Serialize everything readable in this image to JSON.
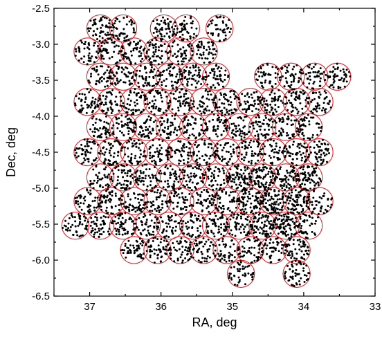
{
  "chart_data": {
    "type": "scatter",
    "xlabel": "RA, deg",
    "ylabel": "Dec, deg",
    "xlim": [
      37.5,
      33.0
    ],
    "ylim": [
      -6.5,
      -2.5
    ],
    "x_reversed": true,
    "grid": false,
    "x_ticks": [
      37,
      36,
      35,
      34,
      33
    ],
    "x_tick_labels": [
      "37",
      "36",
      "35",
      "34",
      "33"
    ],
    "y_ticks": [
      -2.5,
      -3.0,
      -3.5,
      -4.0,
      -4.5,
      -5.0,
      -5.5,
      -6.0,
      -6.5
    ],
    "y_tick_labels": [
      "-2.5",
      "-3.0",
      "-3.5",
      "-4.0",
      "-4.5",
      "-5.0",
      "-5.5",
      "-6.0",
      "-6.5"
    ],
    "field_radius_deg": 0.19,
    "colors": {
      "circle": "#e21f26",
      "point": "#000000",
      "axis": "#000000"
    },
    "series": [
      {
        "kind": "field-circles",
        "centers": [
          [
            36.85,
            -2.78
          ],
          [
            36.53,
            -2.78
          ],
          [
            35.96,
            -2.78
          ],
          [
            35.65,
            -2.78
          ],
          [
            35.18,
            -2.78
          ],
          [
            37.03,
            -3.1
          ],
          [
            36.7,
            -3.1
          ],
          [
            36.38,
            -3.1
          ],
          [
            36.05,
            -3.1
          ],
          [
            35.73,
            -3.1
          ],
          [
            35.4,
            -3.1
          ],
          [
            36.85,
            -3.45
          ],
          [
            36.53,
            -3.45
          ],
          [
            36.2,
            -3.45
          ],
          [
            35.88,
            -3.45
          ],
          [
            35.55,
            -3.45
          ],
          [
            35.23,
            -3.45
          ],
          [
            34.5,
            -3.45
          ],
          [
            34.18,
            -3.45
          ],
          [
            33.85,
            -3.45
          ],
          [
            33.53,
            -3.45
          ],
          [
            37.03,
            -3.8
          ],
          [
            36.7,
            -3.8
          ],
          [
            36.38,
            -3.8
          ],
          [
            36.05,
            -3.8
          ],
          [
            35.73,
            -3.8
          ],
          [
            35.4,
            -3.8
          ],
          [
            35.08,
            -3.8
          ],
          [
            34.75,
            -3.8
          ],
          [
            34.43,
            -3.8
          ],
          [
            34.1,
            -3.8
          ],
          [
            33.78,
            -3.8
          ],
          [
            36.85,
            -4.15
          ],
          [
            36.53,
            -4.15
          ],
          [
            36.2,
            -4.15
          ],
          [
            35.88,
            -4.15
          ],
          [
            35.55,
            -4.15
          ],
          [
            35.23,
            -4.15
          ],
          [
            34.9,
            -4.15
          ],
          [
            34.58,
            -4.15
          ],
          [
            34.25,
            -4.15
          ],
          [
            33.93,
            -4.15
          ],
          [
            37.03,
            -4.5
          ],
          [
            36.7,
            -4.5
          ],
          [
            36.38,
            -4.5
          ],
          [
            36.05,
            -4.5
          ],
          [
            35.73,
            -4.5
          ],
          [
            35.4,
            -4.5
          ],
          [
            35.08,
            -4.5
          ],
          [
            34.75,
            -4.5
          ],
          [
            34.43,
            -4.5
          ],
          [
            34.1,
            -4.5
          ],
          [
            33.78,
            -4.5
          ],
          [
            36.85,
            -4.85
          ],
          [
            36.53,
            -4.85
          ],
          [
            36.2,
            -4.85
          ],
          [
            35.88,
            -4.85
          ],
          [
            35.55,
            -4.85
          ],
          [
            35.23,
            -4.85
          ],
          [
            34.9,
            -4.85
          ],
          [
            34.58,
            -4.85
          ],
          [
            34.25,
            -4.85
          ],
          [
            33.93,
            -4.85
          ],
          [
            37.03,
            -5.18
          ],
          [
            36.7,
            -5.18
          ],
          [
            36.38,
            -5.18
          ],
          [
            36.05,
            -5.18
          ],
          [
            35.73,
            -5.18
          ],
          [
            35.4,
            -5.18
          ],
          [
            35.08,
            -5.18
          ],
          [
            34.75,
            -5.18
          ],
          [
            34.43,
            -5.18
          ],
          [
            34.1,
            -5.18
          ],
          [
            33.78,
            -5.18
          ],
          [
            37.2,
            -5.52
          ],
          [
            36.85,
            -5.52
          ],
          [
            36.53,
            -5.52
          ],
          [
            36.2,
            -5.52
          ],
          [
            35.88,
            -5.52
          ],
          [
            35.55,
            -5.52
          ],
          [
            35.23,
            -5.52
          ],
          [
            34.9,
            -5.52
          ],
          [
            34.58,
            -5.52
          ],
          [
            34.25,
            -5.52
          ],
          [
            33.93,
            -5.52
          ],
          [
            36.38,
            -5.86
          ],
          [
            36.05,
            -5.86
          ],
          [
            35.73,
            -5.86
          ],
          [
            35.4,
            -5.86
          ],
          [
            35.08,
            -5.86
          ],
          [
            34.75,
            -5.86
          ],
          [
            34.43,
            -5.86
          ],
          [
            34.1,
            -5.86
          ],
          [
            34.88,
            -6.19
          ],
          [
            34.1,
            -6.19
          ]
        ]
      },
      {
        "kind": "objects",
        "points_per_field": 42,
        "dense_region": {
          "center": [
            34.4,
            -5.05
          ],
          "radius": 0.55
        }
      }
    ]
  }
}
